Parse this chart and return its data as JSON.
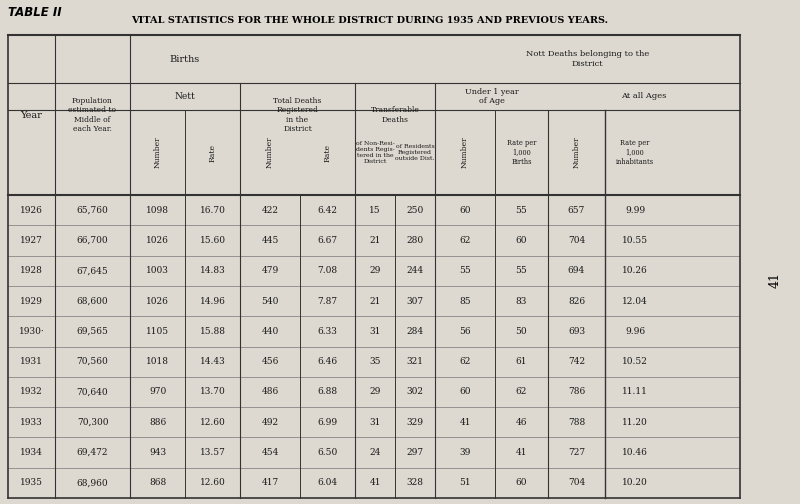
{
  "title_line1": "TABLE II",
  "title_line2": "VITAL STATISTICS FOR THE WHOLE DISTRICT DURING 1935 AND PREVIOUS YEARS.",
  "bg_color": "#ddd9d0",
  "years": [
    "1926",
    "1927",
    "1928",
    "1929",
    "1930",
    "1931",
    "1932",
    "1933",
    "1934",
    "1935"
  ],
  "population": [
    "65,760",
    "66,700",
    "67,645",
    "68,600",
    "69,565",
    "70,560",
    "70,640",
    "70,300",
    "69,472",
    "68,960"
  ],
  "births_number": [
    "1098",
    "1026",
    "1003",
    "1026",
    "1105",
    "1018",
    "970",
    "886",
    "943",
    "868"
  ],
  "births_rate": [
    "16.70",
    "15.60",
    "14.83",
    "14.96",
    "15.88",
    "14.43",
    "13.70",
    "12.60",
    "13.57",
    "12.60"
  ],
  "deaths_number": [
    "422",
    "445",
    "479",
    "540",
    "440",
    "456",
    "486",
    "492",
    "454",
    "417"
  ],
  "deaths_rate": [
    "6.42",
    "6.67",
    "7.08",
    "7.87",
    "6.33",
    "6.46",
    "6.88",
    "6.99",
    "6.50",
    "6.04"
  ],
  "transf_nonresi": [
    "15",
    "21",
    "29",
    "21",
    "31",
    "35",
    "29",
    "31",
    "24",
    "41"
  ],
  "transf_resi": [
    "250",
    "280",
    "244",
    "307",
    "284",
    "321",
    "302",
    "329",
    "297",
    "328"
  ],
  "under1_number": [
    "60",
    "62",
    "55",
    "85",
    "56",
    "62",
    "60",
    "41",
    "39",
    "51"
  ],
  "under1_rate": [
    "55",
    "60",
    "55",
    "83",
    "50",
    "61",
    "62",
    "46",
    "41",
    "60"
  ],
  "allages_number": [
    "657",
    "704",
    "694",
    "826",
    "693",
    "742",
    "786",
    "788",
    "727",
    "704"
  ],
  "allages_rate": [
    "9.99",
    "10.55",
    "10.26",
    "12.04",
    "9.96",
    "10.52",
    "11.11",
    "11.20",
    "10.46",
    "10.20"
  ],
  "page_number": "41"
}
